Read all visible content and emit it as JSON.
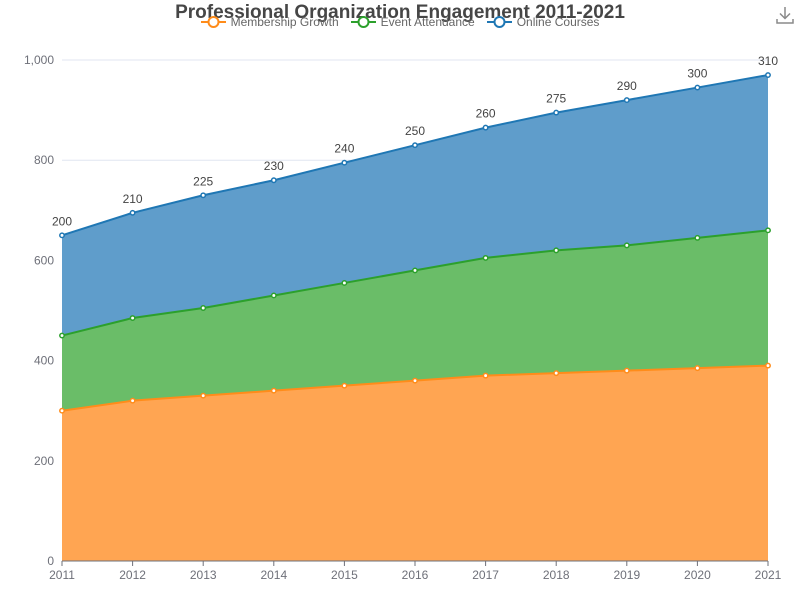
{
  "chart_data": {
    "type": "area",
    "stacked": true,
    "title": "Professional Organization Engagement 2011-2021",
    "x": [
      "2011",
      "2012",
      "2013",
      "2014",
      "2015",
      "2016",
      "2017",
      "2018",
      "2019",
      "2020",
      "2021"
    ],
    "ylim": [
      0,
      1000
    ],
    "yticks": [
      0,
      200,
      400,
      600,
      800,
      1000
    ],
    "ytick_labels": [
      "0",
      "200",
      "400",
      "600",
      "800",
      "1,000"
    ],
    "grid": true,
    "legend_position": "top-center",
    "series": [
      {
        "name": "Membership Growth",
        "color": "#ff8c1a",
        "fill": "#ffa552",
        "values": [
          300,
          320,
          330,
          340,
          350,
          360,
          370,
          375,
          380,
          385,
          390
        ]
      },
      {
        "name": "Event Attendance",
        "color": "#2ca02c",
        "fill": "#6abd68",
        "values": [
          150,
          165,
          175,
          190,
          205,
          220,
          235,
          245,
          250,
          260,
          270
        ]
      },
      {
        "name": "Online Courses",
        "color": "#1f77b4",
        "fill": "#5f9dcb",
        "values": [
          200,
          210,
          225,
          230,
          240,
          250,
          260,
          275,
          290,
          300,
          310
        ],
        "show_labels": true
      }
    ]
  },
  "toolbar": {
    "download_icon": "download-icon"
  }
}
